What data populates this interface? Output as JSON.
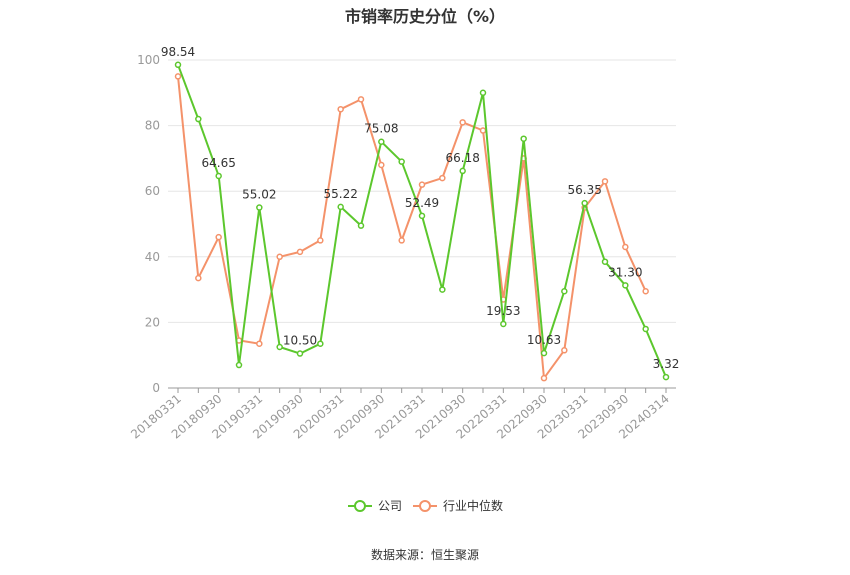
{
  "colors": {
    "company": "#5cc72d",
    "industry": "#f4926a",
    "grid": "#e6e6e6",
    "axis": "#999999"
  },
  "source": "数据来源：恒生聚源",
  "chart_data": {
    "type": "line",
    "title": "市销率历史分位（%）",
    "ylim": [
      0,
      100
    ],
    "yticks": [
      0,
      20,
      40,
      60,
      80,
      100
    ],
    "grid": "horizontal",
    "legend_position": "bottom",
    "x": [
      "20180331",
      "20180630",
      "20180930",
      "20181231",
      "20190331",
      "20190630",
      "20190930",
      "20191231",
      "20200331",
      "20200630",
      "20200930",
      "20201231",
      "20210331",
      "20210630",
      "20210930",
      "20211231",
      "20220331",
      "20220630",
      "20220930",
      "20221231",
      "20230331",
      "20230630",
      "20230930",
      "20231231",
      "20240314"
    ],
    "x_tick_labels": [
      "20180331",
      "20180930",
      "20190331",
      "20190930",
      "20200331",
      "20200930",
      "20210331",
      "20210930",
      "20220331",
      "20220930",
      "20230331",
      "20230930",
      "20240314"
    ],
    "series": [
      {
        "name": "公司",
        "values": [
          98.54,
          82,
          64.65,
          7,
          55.02,
          12.5,
          10.5,
          13.5,
          55.22,
          49.5,
          75.08,
          69,
          52.49,
          30,
          66.18,
          90,
          19.53,
          76,
          10.63,
          29.5,
          56.35,
          38.5,
          31.3,
          18,
          3.32
        ],
        "labels": {
          "0": "98.54",
          "2": "64.65",
          "4": "55.02",
          "6": "10.50",
          "8": "55.22",
          "10": "75.08",
          "12": "52.49",
          "14": "66.18",
          "16": "19.53",
          "18": "10.63",
          "20": "56.35",
          "22": "31.30",
          "24": "3.32"
        }
      },
      {
        "name": "行业中位数",
        "values": [
          95,
          33.5,
          46,
          14.5,
          13.5,
          40,
          41.5,
          45,
          85,
          88,
          68,
          45,
          62,
          64,
          81,
          78.5,
          27,
          70,
          3,
          11.5,
          55,
          63,
          43,
          29.5,
          null
        ]
      }
    ]
  }
}
